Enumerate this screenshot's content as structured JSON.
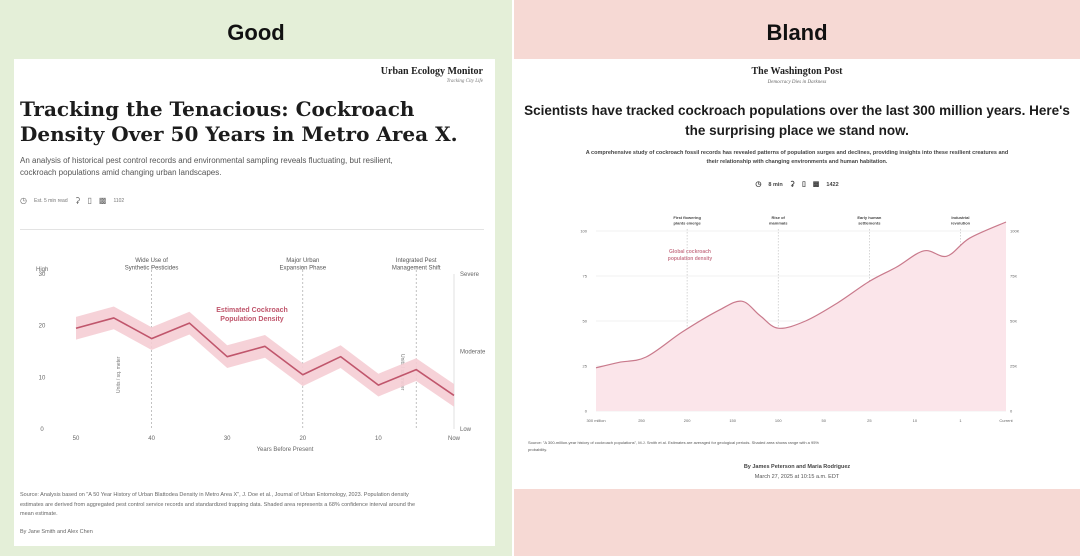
{
  "panels": {
    "good_label": "Good",
    "bland_label": "Bland"
  },
  "good": {
    "publication": "Urban Ecology Monitor",
    "publication_tag": "Tracking City Life",
    "title": "Tracking the Tenacious: Cockroach Density Over 50 Years in Metro Area X.",
    "subtitle": "An analysis of historical pest control records and environmental sampling reveals fluctuating, but resilient, cockroach populations amid changing urban landscapes.",
    "meta": {
      "read_time": "Est. 5 min read",
      "clock_icon": "clock-icon",
      "share_icon": "share-icon",
      "bookmark_icon": "bookmark-icon",
      "comment_icon": "comment-icon",
      "comments": "1102"
    },
    "source": "Source: Analysis based on \"A 50 Year History of Urban Blattodea Density in Metro Area X\", J. Doe et al., Journal of Urban Entomology, 2023. Population density estimates are derived from aggregated pest control service records and standardized trapping data. Shaded area represents a 68% confidence interval around the mean estimate.",
    "byline": "By Jane Smith and Alex Chen",
    "colors": {
      "line": "#c0566c",
      "band": "#f5cdd4"
    }
  },
  "bland": {
    "publication": "The Washington Post",
    "publication_tag": "Democracy Dies in Darkness",
    "title": "Scientists have tracked cockroach populations over the last 300 million years. Here's the surprising place we stand now.",
    "subtitle": "A comprehensive study of cockroach fossil records has revealed patterns of population surges and declines, providing insights into these resilient creatures and their relationship with changing environments and human habitation.",
    "meta": {
      "read_time": "8 min",
      "clock_icon": "clock-icon",
      "share_icon": "share-icon",
      "bookmark_icon": "bookmark-icon",
      "comment_icon": "comment-icon",
      "comments": "1422"
    },
    "source": "Source: \"A 300-million-year history of cockroach populations\", M.J. Smith et al. Estimates are averaged for geological periods. Shaded area shows range with a 95% probability.",
    "byline": "By James Peterson and Maria Rodriguez",
    "dateline": "March 27, 2025 at 10:15 a.m. EDT",
    "colors": {
      "line": "#c97a8c",
      "fill": "#fbe5ea"
    }
  },
  "chart_data": [
    {
      "type": "line",
      "title": "",
      "series_label": "Estimated Cockroach\nPopulation Density",
      "xlabel": "Years Before Present",
      "ylabel": "Units / sq. meter",
      "ylabel_right": "Units / sq. meter",
      "x": [
        50,
        45,
        40,
        35,
        30,
        25,
        20,
        15,
        10,
        5,
        0
      ],
      "x_ticks": [
        "50",
        "40",
        "30",
        "20",
        "10",
        "Now"
      ],
      "x_tick_values": [
        50,
        40,
        30,
        20,
        10,
        0
      ],
      "xlim": [
        50,
        0
      ],
      "y_ticks": [
        "0",
        "10",
        "20",
        "30"
      ],
      "y_tick_values": [
        0,
        10,
        20,
        30
      ],
      "y_top_label": "High",
      "ylim": [
        0,
        30
      ],
      "right_labels": [
        {
          "label": "Severe",
          "value": 30
        },
        {
          "label": "Moderate",
          "value": 15
        },
        {
          "label": "Low",
          "value": 0
        }
      ],
      "series": [
        {
          "name": "Estimated Cockroach Population Density",
          "values": [
            19.5,
            21.5,
            17.5,
            20.5,
            14,
            16,
            10.5,
            14,
            8.5,
            11.5,
            6.5
          ]
        }
      ],
      "band_halfwidth": 2.2,
      "annotations": [
        {
          "x": 40,
          "label": "Wide Use of\nSynthetic Pesticides"
        },
        {
          "x": 20,
          "label": "Major Urban\nExpansion Phase"
        },
        {
          "x": 5,
          "label": "Integrated Pest\nManagement Shift"
        }
      ]
    },
    {
      "type": "area",
      "title": "",
      "series_label": "Global cockroach\npopulation density",
      "x_ticks": [
        "300 million",
        "250",
        "200",
        "150",
        "100",
        "50",
        "25",
        "10",
        "1",
        "Current"
      ],
      "y_ticks_left": [
        "0",
        "25",
        "50",
        "75",
        "100"
      ],
      "y_tick_values": [
        0,
        25,
        50,
        75,
        100
      ],
      "y_ticks_right": [
        "0",
        "25K",
        "50K",
        "75K",
        "100K"
      ],
      "ylim": [
        0,
        100
      ],
      "series": [
        {
          "name": "Global cockroach population density",
          "values": [
            24,
            27,
            30,
            44,
            56,
            61,
            53,
            46,
            50,
            60,
            72,
            80,
            89,
            86,
            96,
            105
          ]
        }
      ],
      "x_index": [
        0,
        0.5,
        1.1,
        1.9,
        2.7,
        3.2,
        3.6,
        4.0,
        4.6,
        5.3,
        6.0,
        6.6,
        7.2,
        7.7,
        8.2,
        9.0
      ],
      "annotations": [
        {
          "x_index": 2,
          "label": "First flowering\nplants emerge"
        },
        {
          "x_index": 4,
          "label": "Rise of\nmammals"
        },
        {
          "x_index": 6,
          "label": "Early human\nsettlements"
        },
        {
          "x_index": 8,
          "label": "Industrial\nrevolution"
        }
      ]
    }
  ]
}
